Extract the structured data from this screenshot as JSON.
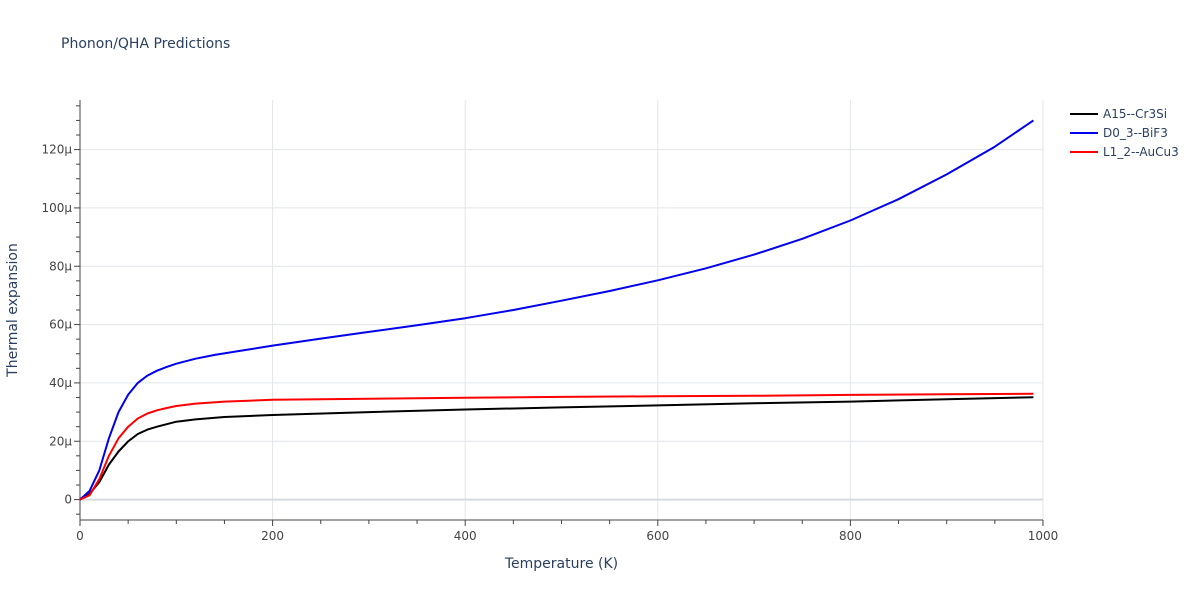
{
  "chart_data": {
    "type": "line",
    "title": "Phonon/QHA Predictions",
    "xlabel": "Temperature (K)",
    "ylabel": "Thermal expansion",
    "xlim": [
      0,
      1000
    ],
    "ylim": [
      -7,
      137
    ],
    "xticks": [
      0,
      200,
      400,
      600,
      800,
      1000
    ],
    "xtick_labels": [
      "0",
      "200",
      "400",
      "600",
      "800",
      "1000"
    ],
    "yticks": [
      0,
      20,
      40,
      60,
      80,
      100,
      120
    ],
    "ytick_labels": [
      "0",
      "20µ",
      "40µ",
      "60µ",
      "80µ",
      "100µ",
      "120µ"
    ],
    "grid": true,
    "legend_position": "top-right outside",
    "series": [
      {
        "name": "A15--Cr3Si",
        "color": "#000000",
        "x": [
          0,
          10,
          20,
          30,
          40,
          50,
          60,
          70,
          80,
          100,
          120,
          150,
          200,
          300,
          400,
          500,
          600,
          700,
          800,
          900,
          990
        ],
        "y": [
          0,
          2,
          6,
          12,
          16.5,
          20,
          22.5,
          24,
          25,
          26.7,
          27.5,
          28.3,
          29.0,
          30.0,
          30.9,
          31.6,
          32.3,
          33.0,
          33.6,
          34.4,
          35.1
        ]
      },
      {
        "name": "D0_3--BiF3",
        "color": "#0000ee",
        "x": [
          0,
          10,
          20,
          30,
          40,
          50,
          60,
          70,
          80,
          90,
          100,
          120,
          140,
          170,
          200,
          250,
          300,
          350,
          400,
          450,
          500,
          550,
          600,
          650,
          700,
          750,
          800,
          850,
          900,
          950,
          990
        ],
        "y": [
          0,
          3,
          10,
          21,
          30,
          36,
          40,
          42.5,
          44.2,
          45.5,
          46.6,
          48.3,
          49.6,
          51.2,
          52.8,
          55.2,
          57.5,
          59.8,
          62.2,
          65.0,
          68.2,
          71.5,
          75.2,
          79.3,
          84.0,
          89.4,
          95.7,
          103.0,
          111.5,
          121.0,
          130.0
        ]
      },
      {
        "name": "L1_2--AuCu3",
        "color": "#ff0000",
        "x": [
          0,
          10,
          20,
          30,
          40,
          50,
          60,
          70,
          80,
          90,
          100,
          120,
          150,
          200,
          300,
          400,
          500,
          600,
          700,
          800,
          900,
          990
        ],
        "y": [
          0,
          1.5,
          7,
          15,
          21,
          25,
          27.8,
          29.5,
          30.6,
          31.4,
          32.1,
          32.9,
          33.6,
          34.2,
          34.6,
          34.9,
          35.2,
          35.4,
          35.6,
          35.9,
          36.1,
          36.3
        ]
      }
    ]
  }
}
